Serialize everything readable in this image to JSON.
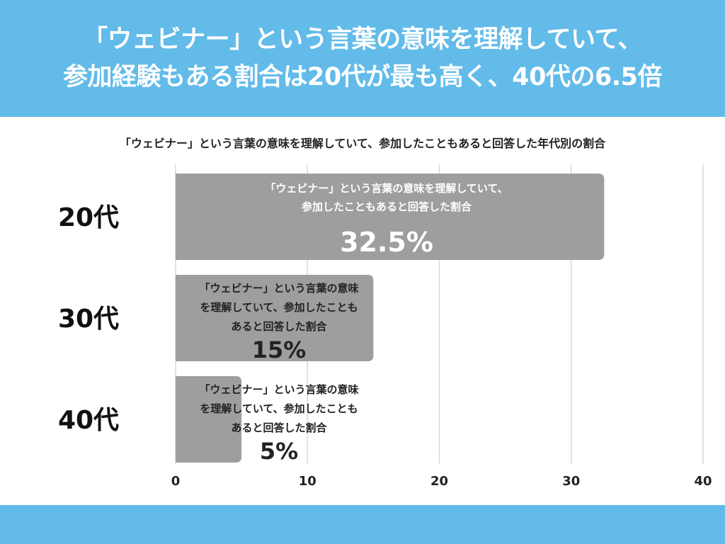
{
  "header": {
    "title_line1": "「ウェビナー」という言葉の意味を理解していて、",
    "title_line2": "参加経験もある割合は20代が最も高く、40代の6.5倍"
  },
  "subtitle": "「ウェビナー」という言葉の意味を理解していて、参加したこともあると回答した年代別の割合",
  "colors": {
    "header_bg": "#62bbe9",
    "bar": "#9e9e9e",
    "grid": "#d9d9d9"
  },
  "chart_data": {
    "type": "bar",
    "orientation": "horizontal",
    "title": "「ウェビナー」という言葉の意味を理解していて、参加したこともあると回答した年代別の割合",
    "categories": [
      "20代",
      "30代",
      "40代"
    ],
    "values": [
      32.5,
      15,
      5
    ],
    "value_labels": [
      "32.5%",
      "15%",
      "5%"
    ],
    "bar_notes": [
      [
        "「ウェビナー」という言葉の意味を理解していて、",
        "参加したこともあると回答した割合"
      ],
      [
        "「ウェビナー」という言葉の意味",
        "を理解していて、参加したことも",
        "あると回答した割合"
      ],
      [
        "「ウェビナー」という言葉の意味",
        "を理解していて、参加したことも",
        "あると回答した割合"
      ]
    ],
    "xlim": [
      0,
      40
    ],
    "xticks": [
      "0",
      "10",
      "20",
      "30",
      "40"
    ],
    "grid": true,
    "legend": false
  }
}
